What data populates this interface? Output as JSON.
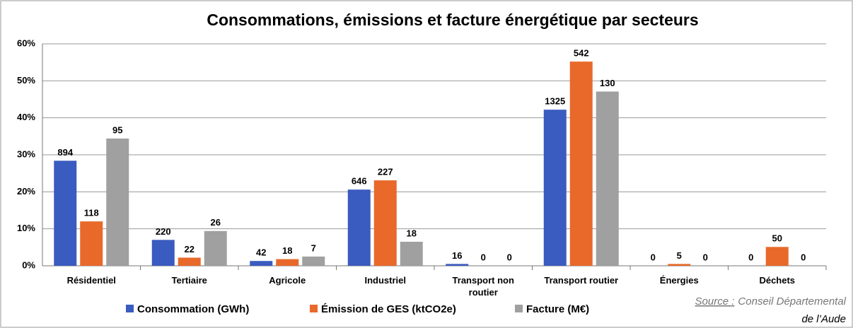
{
  "chart_data": {
    "type": "bar",
    "title": "Consommations, émissions et facture énergétique par secteurs",
    "categories": [
      "Résidentiel",
      "Tertiaire",
      "Agricole",
      "Industriel",
      "Transport non routier",
      "Transport routier",
      "Énergies",
      "Déchets"
    ],
    "series": [
      {
        "name": "Consommation (GWh)",
        "color": "#3a5bbf",
        "values": [
          28.4,
          7.0,
          1.3,
          20.6,
          0.5,
          42.2,
          0,
          0
        ],
        "amounts": [
          894,
          220,
          42,
          646,
          16,
          1325,
          0,
          0
        ]
      },
      {
        "name": "Émission de GES (ktCO2e)",
        "color": "#e8692a",
        "values": [
          12.0,
          2.2,
          1.8,
          23.1,
          0,
          55.2,
          0.5,
          5.1
        ],
        "amounts": [
          118,
          22,
          18,
          227,
          0,
          542,
          5,
          50
        ]
      },
      {
        "name": "Facture (M€)",
        "color": "#a0a0a0",
        "values": [
          34.4,
          9.4,
          2.5,
          6.5,
          0,
          47.1,
          0,
          0
        ],
        "amounts": [
          95,
          26,
          7,
          18,
          0,
          130,
          0,
          0
        ]
      }
    ],
    "ylim": [
      0,
      60
    ],
    "yticks": [
      {
        "value": 0,
        "label": "0%"
      },
      {
        "value": 10,
        "label": "10%"
      },
      {
        "value": 20,
        "label": "20%"
      },
      {
        "value": 30,
        "label": "30%"
      },
      {
        "value": 40,
        "label": "40%"
      },
      {
        "value": 50,
        "label": "50%"
      },
      {
        "value": 60,
        "label": "60%"
      }
    ],
    "grid": true,
    "source_label": "Source :",
    "source_lines": [
      "Conseil Départemental",
      "de l’Aude"
    ]
  }
}
